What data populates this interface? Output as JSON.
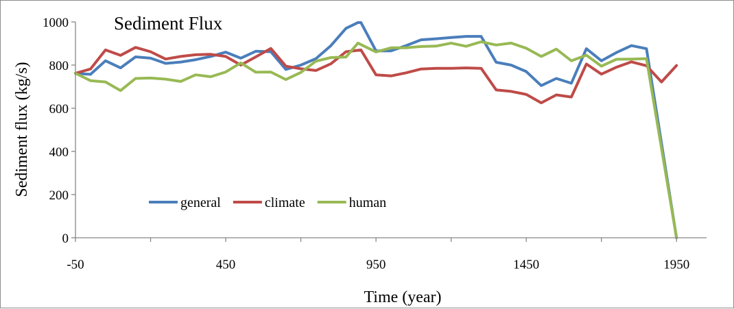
{
  "chart_data": {
    "type": "line",
    "title": "Sediment Flux",
    "xlabel": "Time (year)",
    "ylabel": "Sediment flux (kg/s)",
    "xlim": [
      -50,
      2050
    ],
    "ylim": [
      0,
      1000
    ],
    "x_ticks": [
      -50,
      450,
      950,
      1450,
      1950
    ],
    "y_ticks": [
      0,
      200,
      400,
      600,
      800,
      1000
    ],
    "grid": false,
    "legend_position": "bottom-left",
    "series": [
      {
        "name": "general",
        "color": "#4a7ebb",
        "points": [
          [
            -50,
            762
          ],
          [
            0,
            757
          ],
          [
            50,
            820
          ],
          [
            100,
            787
          ],
          [
            150,
            838
          ],
          [
            200,
            832
          ],
          [
            250,
            808
          ],
          [
            300,
            814
          ],
          [
            350,
            825
          ],
          [
            400,
            840
          ],
          [
            450,
            860
          ],
          [
            500,
            832
          ],
          [
            550,
            864
          ],
          [
            600,
            862
          ],
          [
            650,
            780
          ],
          [
            700,
            800
          ],
          [
            750,
            830
          ],
          [
            800,
            890
          ],
          [
            850,
            970
          ],
          [
            890,
            997
          ],
          [
            900,
            997
          ],
          [
            950,
            866
          ],
          [
            1000,
            866
          ],
          [
            1050,
            890
          ],
          [
            1100,
            917
          ],
          [
            1150,
            922
          ],
          [
            1200,
            928
          ],
          [
            1250,
            933
          ],
          [
            1300,
            933
          ],
          [
            1350,
            813
          ],
          [
            1400,
            800
          ],
          [
            1450,
            770
          ],
          [
            1500,
            705
          ],
          [
            1550,
            738
          ],
          [
            1600,
            716
          ],
          [
            1650,
            876
          ],
          [
            1700,
            820
          ],
          [
            1750,
            858
          ],
          [
            1800,
            890
          ],
          [
            1850,
            876
          ],
          [
            1950,
            0
          ]
        ]
      },
      {
        "name": "climate",
        "color": "#be4b48",
        "points": [
          [
            -50,
            762
          ],
          [
            0,
            782
          ],
          [
            50,
            870
          ],
          [
            100,
            845
          ],
          [
            150,
            882
          ],
          [
            200,
            862
          ],
          [
            250,
            828
          ],
          [
            300,
            840
          ],
          [
            350,
            848
          ],
          [
            400,
            850
          ],
          [
            450,
            840
          ],
          [
            500,
            800
          ],
          [
            550,
            838
          ],
          [
            600,
            877
          ],
          [
            650,
            795
          ],
          [
            700,
            783
          ],
          [
            750,
            775
          ],
          [
            800,
            806
          ],
          [
            850,
            862
          ],
          [
            900,
            870
          ],
          [
            950,
            755
          ],
          [
            1000,
            750
          ],
          [
            1050,
            764
          ],
          [
            1100,
            782
          ],
          [
            1150,
            785
          ],
          [
            1200,
            785
          ],
          [
            1250,
            787
          ],
          [
            1300,
            785
          ],
          [
            1350,
            685
          ],
          [
            1400,
            678
          ],
          [
            1450,
            664
          ],
          [
            1500,
            625
          ],
          [
            1550,
            662
          ],
          [
            1600,
            652
          ],
          [
            1650,
            805
          ],
          [
            1700,
            758
          ],
          [
            1750,
            790
          ],
          [
            1800,
            815
          ],
          [
            1850,
            797
          ],
          [
            1900,
            722
          ],
          [
            1950,
            798
          ]
        ]
      },
      {
        "name": "human",
        "color": "#98b954",
        "points": [
          [
            -50,
            762
          ],
          [
            0,
            728
          ],
          [
            50,
            722
          ],
          [
            100,
            682
          ],
          [
            150,
            738
          ],
          [
            200,
            740
          ],
          [
            250,
            735
          ],
          [
            300,
            724
          ],
          [
            350,
            755
          ],
          [
            400,
            746
          ],
          [
            450,
            768
          ],
          [
            500,
            810
          ],
          [
            550,
            767
          ],
          [
            600,
            768
          ],
          [
            650,
            733
          ],
          [
            700,
            766
          ],
          [
            750,
            818
          ],
          [
            800,
            835
          ],
          [
            850,
            837
          ],
          [
            890,
            902
          ],
          [
            950,
            861
          ],
          [
            1000,
            880
          ],
          [
            1050,
            880
          ],
          [
            1100,
            886
          ],
          [
            1150,
            888
          ],
          [
            1200,
            902
          ],
          [
            1250,
            887
          ],
          [
            1300,
            908
          ],
          [
            1350,
            893
          ],
          [
            1400,
            902
          ],
          [
            1450,
            878
          ],
          [
            1500,
            840
          ],
          [
            1550,
            874
          ],
          [
            1600,
            820
          ],
          [
            1650,
            846
          ],
          [
            1700,
            795
          ],
          [
            1750,
            827
          ],
          [
            1800,
            828
          ],
          [
            1850,
            830
          ],
          [
            1950,
            0
          ]
        ]
      }
    ]
  }
}
